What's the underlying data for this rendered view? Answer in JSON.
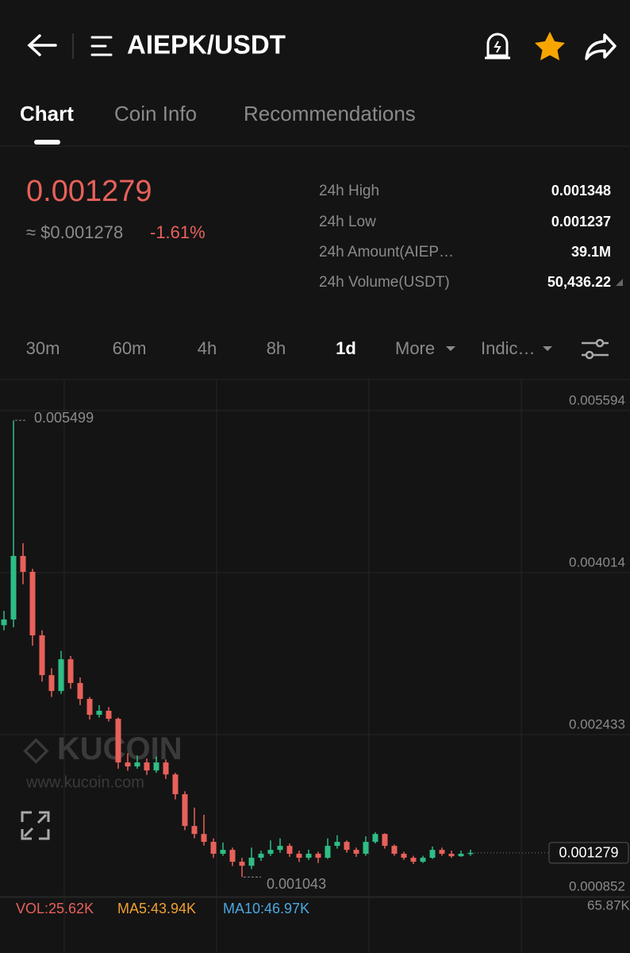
{
  "header": {
    "title": "AIEPK/USDT"
  },
  "tabs": [
    "Chart",
    "Coin Info",
    "Recommendations"
  ],
  "ticker": {
    "price": 0.001279,
    "usd": "≈ $0.001278",
    "change": "-1.61%",
    "stats": [
      {
        "label": "24h High",
        "value": "0.001348"
      },
      {
        "label": "24h Low",
        "value": "0.001237"
      },
      {
        "label": "24h Amount(AIEP…",
        "value": "39.1M"
      },
      {
        "label": "24h Volume(USDT)",
        "value": "50,436.22"
      }
    ]
  },
  "intervals": [
    "30m",
    "60m",
    "4h",
    "8h",
    "1d",
    "More",
    "Indic…"
  ],
  "chart": {
    "type": "candlestick",
    "ylim": [
      0.000844,
      0.005881
    ],
    "yticks": [
      0.005594,
      0.004014,
      0.002433,
      0.000852
    ],
    "up_color": "#2ebd85",
    "down_color": "#e8615a",
    "max_price": 0.005499,
    "min_price": 0.001043,
    "candles": [
      [
        0.0035,
        0.00364,
        0.00345,
        0.003556
      ],
      [
        0.003556,
        0.005499,
        0.00348,
        0.004176
      ],
      [
        0.004176,
        0.0043,
        0.0039,
        0.004021
      ],
      [
        0.004021,
        0.00405,
        0.0033,
        0.003401
      ],
      [
        0.003401,
        0.00345,
        0.00295,
        0.003013
      ],
      [
        0.003013,
        0.00308,
        0.0028,
        0.002858
      ],
      [
        0.002858,
        0.00325,
        0.00283,
        0.003168
      ],
      [
        0.003168,
        0.0032,
        0.00288,
        0.002936
      ],
      [
        0.002936,
        0.00299,
        0.00272,
        0.002781
      ],
      [
        0.002781,
        0.0028,
        0.00258,
        0.002626
      ],
      [
        0.002626,
        0.00272,
        0.0026,
        0.002665
      ],
      [
        0.002665,
        0.0027,
        0.00256,
        0.002587
      ],
      [
        0.002587,
        0.0026,
        0.0021,
        0.002161
      ],
      [
        0.002161,
        0.00225,
        0.00208,
        0.002122
      ],
      [
        0.002122,
        0.00223,
        0.0021,
        0.002161
      ],
      [
        0.002161,
        0.0022,
        0.00204,
        0.002083
      ],
      [
        0.002083,
        0.00222,
        0.00206,
        0.002161
      ],
      [
        0.002161,
        0.00219,
        0.002,
        0.002044
      ],
      [
        0.002044,
        0.00206,
        0.0018,
        0.001851
      ],
      [
        0.001851,
        0.00188,
        0.0015,
        0.001541
      ],
      [
        0.001541,
        0.00172,
        0.00142,
        0.001463
      ],
      [
        0.001463,
        0.00165,
        0.00135,
        0.001386
      ],
      [
        0.001386,
        0.00142,
        0.00123,
        0.00127
      ],
      [
        0.00127,
        0.00138,
        0.00125,
        0.001308
      ],
      [
        0.001308,
        0.00133,
        0.00115,
        0.001192
      ],
      [
        0.001192,
        0.00123,
        0.001043,
        0.001153
      ],
      [
        0.001153,
        0.00133,
        0.00112,
        0.001231
      ],
      [
        0.001231,
        0.0013,
        0.0012,
        0.00127
      ],
      [
        0.00127,
        0.0014,
        0.00125,
        0.001308
      ],
      [
        0.001308,
        0.00142,
        0.00128,
        0.001347
      ],
      [
        0.001347,
        0.00137,
        0.00124,
        0.00127
      ],
      [
        0.00127,
        0.0013,
        0.00119,
        0.001231
      ],
      [
        0.001231,
        0.00131,
        0.00121,
        0.00127
      ],
      [
        0.00127,
        0.00129,
        0.00118,
        0.001231
      ],
      [
        0.001231,
        0.00142,
        0.00122,
        0.001347
      ],
      [
        0.001347,
        0.00145,
        0.00132,
        0.001386
      ],
      [
        0.001386,
        0.0014,
        0.00128,
        0.001308
      ],
      [
        0.001308,
        0.00133,
        0.00124,
        0.00127
      ],
      [
        0.00127,
        0.00144,
        0.00125,
        0.001386
      ],
      [
        0.001386,
        0.00148,
        0.00137,
        0.001463
      ],
      [
        0.001463,
        0.00147,
        0.00132,
        0.001347
      ],
      [
        0.001347,
        0.00136,
        0.00125,
        0.00127
      ],
      [
        0.00127,
        0.00129,
        0.00121,
        0.001231
      ],
      [
        0.001231,
        0.00125,
        0.00117,
        0.001192
      ],
      [
        0.001192,
        0.00125,
        0.00118,
        0.001231
      ],
      [
        0.001231,
        0.00134,
        0.00122,
        0.001308
      ],
      [
        0.001308,
        0.00133,
        0.00125,
        0.00127
      ],
      [
        0.00127,
        0.0013,
        0.00123,
        0.001246
      ],
      [
        0.001246,
        0.0013,
        0.00124,
        0.00127
      ],
      [
        0.00127,
        0.00131,
        0.00125,
        0.001279
      ]
    ]
  },
  "watermark": {
    "brand": "KUCOIN",
    "url": "www.kucoin.com"
  },
  "volume": {
    "vol": "VOL:25.62K",
    "ma5": "MA5:43.94K",
    "ma10": "MA10:46.97K",
    "axis_top": "65.87K"
  }
}
